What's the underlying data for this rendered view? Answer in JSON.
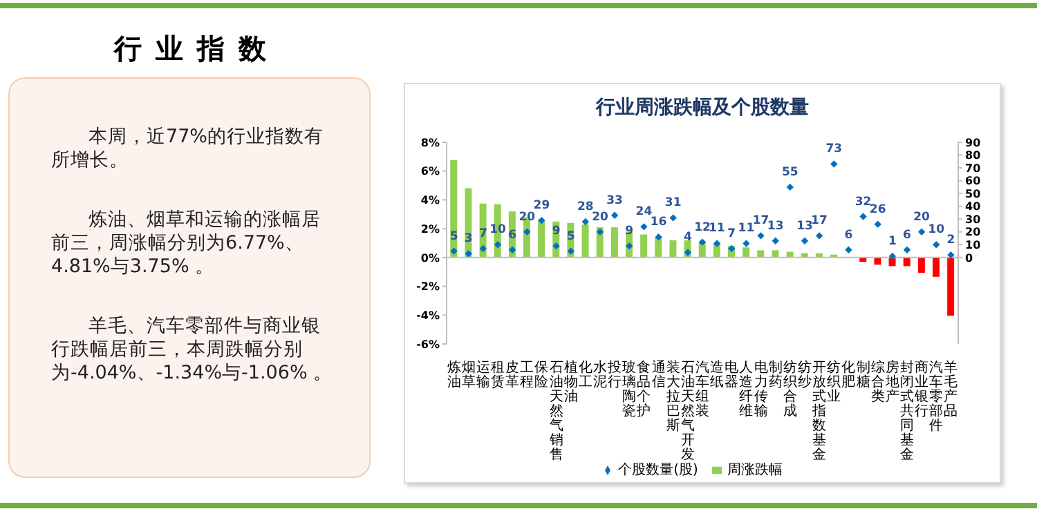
{
  "chart_data": {
    "type": "bar",
    "title": "行业周涨跌幅及个股数量",
    "annotations": [
      "行业指数",
      "本周，近77%的行业指数有所增长。",
      "炼油、烟草和运输的涨幅居前三，周涨幅分别为6.77%、4.81%与3.75% 。",
      "羊毛、汽车零部件与商业银行跌幅居前三，本周跌幅分别为-4.04%、-1.34%与-1.06% 。"
    ],
    "categories": [
      "炼油",
      "烟草",
      "运输",
      "租赁",
      "皮革",
      "工程",
      "保险",
      "石油天然气销售",
      "植物油",
      "化工",
      "水泥",
      "投行",
      "玻璃陶瓷",
      "食品个护",
      "通信",
      "装大拉巴斯",
      "石油天然气开发",
      "汽车组装",
      "造纸",
      "电器",
      "人造纤维",
      "电力传输",
      "制药",
      "纺织合成",
      "纺纱",
      "开放式指数基金",
      "纺织业",
      "化肥",
      "制糖",
      "综合类",
      "房地产",
      "封闭式共同基金",
      "商业银行",
      "汽车零部件",
      "羊毛产品"
    ],
    "series": [
      {
        "name": "周涨跌幅",
        "color": "#92d050",
        "colors": [
          "#92d050",
          "#92d050",
          "#92d050",
          "#92d050",
          "#92d050",
          "#92d050",
          "#92d050",
          "#92d050",
          "#92d050",
          "#92d050",
          "#92d050",
          "#92d050",
          "#92d050",
          "#92d050",
          "#92d050",
          "#92d050",
          "#92d050",
          "#92d050",
          "#92d050",
          "#92d050",
          "#92d050",
          "#92d050",
          "#92d050",
          "#92d050",
          "#92d050",
          "#92d050",
          "#92d050",
          "#92d050",
          "#ff0000",
          "#ff0000",
          "#ff0000",
          "#ff0000",
          "#ff0000",
          "#ff0000",
          "#ff0000"
        ],
        "values": [
          6.77,
          4.81,
          3.75,
          3.7,
          3.2,
          2.8,
          2.6,
          2.5,
          2.4,
          2.3,
          2.1,
          2.1,
          1.8,
          1.6,
          1.4,
          1.2,
          1.2,
          1.1,
          1.0,
          0.8,
          0.7,
          0.5,
          0.5,
          0.4,
          0.3,
          0.3,
          0.2,
          0,
          -0.3,
          -0.5,
          -0.6,
          -0.6,
          -1.06,
          -1.34,
          -4.04
        ]
      },
      {
        "name": "个股数量(股)",
        "type": "scatter",
        "axis": "y2",
        "color": "#0070c0",
        "marker": "diamond",
        "data_labels": true,
        "values": [
          5,
          3,
          7,
          10,
          6,
          20,
          29,
          9,
          5,
          28,
          20,
          33,
          9,
          24,
          16,
          31,
          4,
          12,
          11,
          7,
          11,
          17,
          13,
          55,
          13,
          17,
          73,
          6,
          32,
          26,
          1,
          6,
          20,
          10,
          2
        ]
      }
    ],
    "ylim": [
      -6,
      8
    ],
    "yticks": [
      {
        "value": -6,
        "label": "-6%"
      },
      {
        "value": -4,
        "label": "-4%"
      },
      {
        "value": -2,
        "label": "-2%"
      },
      {
        "value": 0,
        "label": "0%"
      },
      {
        "value": 2,
        "label": "2%"
      },
      {
        "value": 4,
        "label": "4%"
      },
      {
        "value": 6,
        "label": "6%"
      },
      {
        "value": 8,
        "label": "8%"
      }
    ],
    "y2lim": [
      -67.5,
      90
    ],
    "y2ticks": [
      0,
      10,
      20,
      30,
      40,
      50,
      60,
      70,
      80,
      90
    ],
    "ref_lines": [
      {
        "axis": "y",
        "value": 0,
        "color": "#bfbfbf"
      }
    ],
    "grid": false,
    "legend": "bottom"
  }
}
